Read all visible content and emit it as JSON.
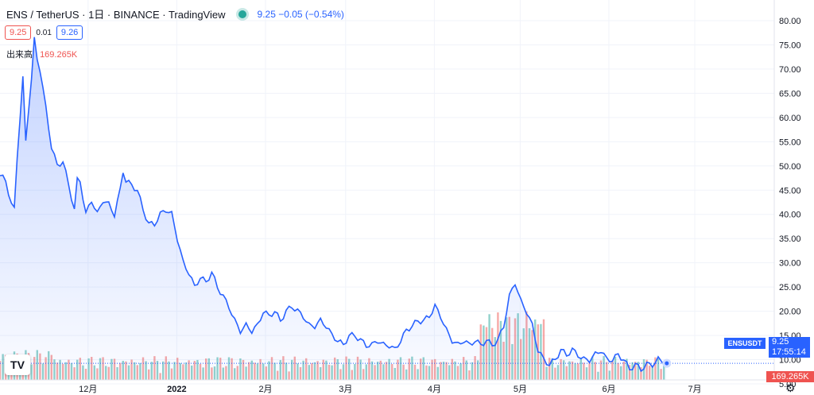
{
  "header": {
    "symbol": "ENS / TetherUS · 1日 · BINANCE · TradingView",
    "change": "9.25  −0.05 (−0.54%)"
  },
  "prices": {
    "bid": "9.25",
    "spread": "0.01",
    "ask": "9.26"
  },
  "volume": {
    "label": "出来高",
    "value": "169.265K"
  },
  "price_label": {
    "symbol": "ENSUSDT",
    "price": "9.25",
    "countdown": "17:55:14"
  },
  "volume_label": "169.265K",
  "logo_text": "TV",
  "colors": {
    "line": "#2962ff",
    "up": "#26a69a",
    "down": "#ef5350"
  },
  "chart_data": {
    "type": "area",
    "title": "",
    "xlabel": "",
    "ylabel": "",
    "ylim": [
      0,
      82
    ],
    "y_ticks": [
      "80.00",
      "75.00",
      "70.00",
      "65.00",
      "60.00",
      "55.00",
      "50.00",
      "45.00",
      "40.00",
      "35.00",
      "30.00",
      "25.00",
      "20.00",
      "15.00",
      "10.00",
      "5.00"
    ],
    "x_ticks": [
      {
        "label": "12月",
        "index": 28
      },
      {
        "label": "2022",
        "index": 59
      },
      {
        "label": "2月",
        "index": 90
      },
      {
        "label": "3月",
        "index": 118
      },
      {
        "label": "4月",
        "index": 149
      },
      {
        "label": "5月",
        "index": 179
      },
      {
        "label": "6月",
        "index": 210
      },
      {
        "label": "7月",
        "index": 240
      }
    ],
    "current_price": 9.25,
    "price_knots": [
      [
        0,
        48
      ],
      [
        2,
        47
      ],
      [
        4,
        42
      ],
      [
        5,
        41
      ],
      [
        6,
        52
      ],
      [
        7,
        60
      ],
      [
        8,
        68
      ],
      [
        9,
        55
      ],
      [
        10,
        62
      ],
      [
        11,
        68
      ],
      [
        12,
        76
      ],
      [
        13,
        72
      ],
      [
        14,
        70
      ],
      [
        16,
        62
      ],
      [
        18,
        54
      ],
      [
        20,
        50
      ],
      [
        22,
        51
      ],
      [
        24,
        46
      ],
      [
        26,
        41
      ],
      [
        27,
        47
      ],
      [
        28,
        47
      ],
      [
        30,
        40
      ],
      [
        32,
        43
      ],
      [
        34,
        40
      ],
      [
        36,
        43
      ],
      [
        38,
        42
      ],
      [
        40,
        40
      ],
      [
        42,
        45
      ],
      [
        43,
        49
      ],
      [
        44,
        47
      ],
      [
        46,
        46
      ],
      [
        48,
        45
      ],
      [
        50,
        41
      ],
      [
        52,
        38
      ],
      [
        54,
        38
      ],
      [
        56,
        40
      ],
      [
        58,
        41
      ],
      [
        60,
        40
      ],
      [
        62,
        35
      ],
      [
        64,
        30
      ],
      [
        66,
        28
      ],
      [
        68,
        25
      ],
      [
        70,
        27
      ],
      [
        72,
        26
      ],
      [
        74,
        28
      ],
      [
        76,
        25
      ],
      [
        78,
        23
      ],
      [
        80,
        21
      ],
      [
        82,
        18
      ],
      [
        84,
        16
      ],
      [
        86,
        17
      ],
      [
        88,
        16
      ],
      [
        90,
        17
      ],
      [
        92,
        20
      ],
      [
        94,
        19
      ],
      [
        96,
        20
      ],
      [
        98,
        18
      ],
      [
        100,
        20
      ],
      [
        102,
        21
      ],
      [
        104,
        20
      ],
      [
        106,
        19
      ],
      [
        108,
        17
      ],
      [
        110,
        17
      ],
      [
        112,
        18
      ],
      [
        114,
        17
      ],
      [
        116,
        15
      ],
      [
        118,
        14
      ],
      [
        120,
        13
      ],
      [
        122,
        15
      ],
      [
        124,
        15
      ],
      [
        126,
        14
      ],
      [
        128,
        13
      ],
      [
        130,
        13
      ],
      [
        132,
        14
      ],
      [
        134,
        13
      ],
      [
        136,
        13
      ],
      [
        138,
        12
      ],
      [
        140,
        14
      ],
      [
        142,
        16
      ],
      [
        144,
        17
      ],
      [
        146,
        18
      ],
      [
        148,
        18
      ],
      [
        150,
        19
      ],
      [
        152,
        21
      ],
      [
        154,
        19
      ],
      [
        156,
        16
      ],
      [
        158,
        14
      ],
      [
        160,
        13
      ],
      [
        162,
        14
      ],
      [
        164,
        13
      ],
      [
        166,
        14
      ],
      [
        168,
        13
      ],
      [
        170,
        14
      ],
      [
        172,
        13
      ],
      [
        174,
        14
      ],
      [
        176,
        17
      ],
      [
        178,
        23
      ],
      [
        180,
        26
      ],
      [
        182,
        22
      ],
      [
        184,
        20
      ],
      [
        186,
        17
      ],
      [
        188,
        12
      ],
      [
        190,
        10
      ],
      [
        192,
        9
      ],
      [
        194,
        10
      ],
      [
        196,
        12
      ],
      [
        198,
        11
      ],
      [
        200,
        12
      ],
      [
        202,
        11
      ],
      [
        204,
        10
      ],
      [
        206,
        10
      ],
      [
        208,
        11
      ],
      [
        210,
        12
      ],
      [
        212,
        10
      ],
      [
        214,
        10
      ],
      [
        216,
        11
      ],
      [
        218,
        10
      ],
      [
        220,
        8
      ],
      [
        222,
        9
      ],
      [
        224,
        8
      ],
      [
        226,
        9
      ],
      [
        228,
        9
      ],
      [
        230,
        10
      ],
      [
        232,
        9.5
      ],
      [
        233,
        9.25
      ]
    ],
    "volume_bars_count": 233
  }
}
